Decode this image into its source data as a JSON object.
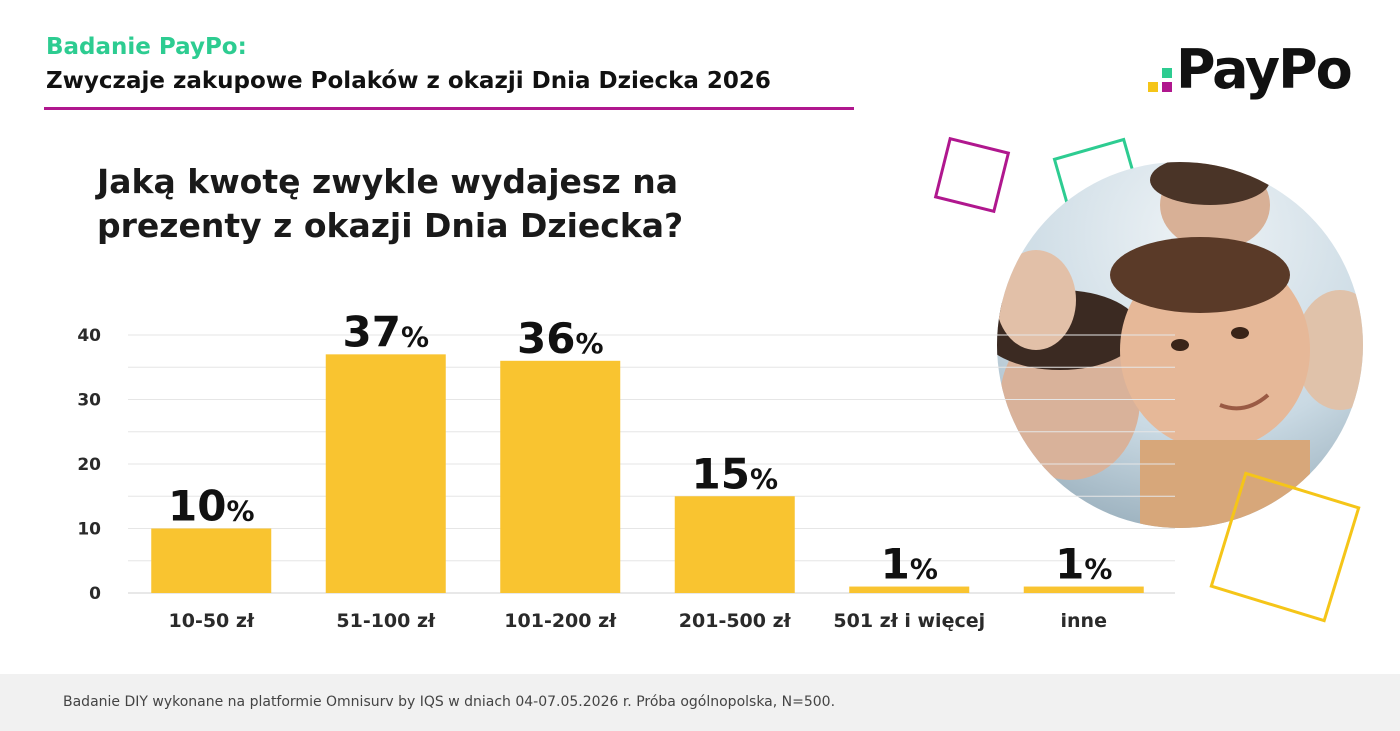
{
  "header": {
    "kicker": "Badanie PayPo:",
    "subtitle": "Zwyczaje zakupowe Polaków z okazji Dnia Dziecka 2026"
  },
  "logo": {
    "text": "PayPo"
  },
  "question": "Jaką kwotę zwykle wydajesz na prezenty z okazji Dnia Dziecka?",
  "footer": {
    "note": "Badanie DIY wykonane na platformie Omnisurv by IQS w dniach 04-07.05.2026 r. Próba ogólnopolska,  N=500."
  },
  "colors": {
    "brand_green": "#2dcc91",
    "brand_magenta": "#b0178e",
    "bar_yellow": "#f9c430",
    "logo_yellow": "#f5c518"
  },
  "image": {
    "icon": "children-photo"
  },
  "chart_data": {
    "type": "bar",
    "categories": [
      "10-50 zł",
      "51-100 zł",
      "101-200 zł",
      "201-500 zł",
      "501 zł i więcej",
      "inne"
    ],
    "values": [
      10,
      37,
      36,
      15,
      1,
      1
    ],
    "value_labels": [
      "10",
      "37",
      "36",
      "15",
      "1",
      "1"
    ],
    "value_suffix": "%",
    "yticks": [
      "0",
      "10",
      "20",
      "30",
      "40"
    ],
    "ylim": [
      0,
      40
    ],
    "grid": true
  }
}
